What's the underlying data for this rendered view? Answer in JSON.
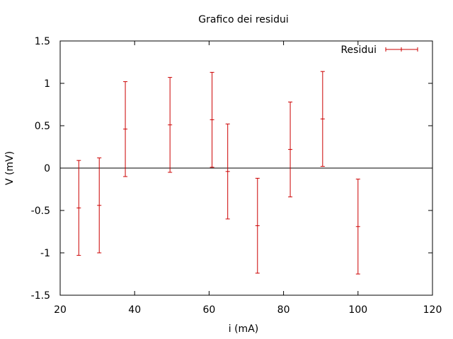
{
  "chart_data": {
    "type": "scatter",
    "title": "Grafico dei residui",
    "xlabel": "i (mA)",
    "ylabel": "V (mV)",
    "xlim": [
      20,
      120
    ],
    "ylim": [
      -1.5,
      1.5
    ],
    "x_ticks": [
      20,
      40,
      60,
      80,
      100,
      120
    ],
    "y_ticks": [
      1.5,
      1,
      0.5,
      0,
      -0.5,
      -1,
      -1.5
    ],
    "x_tick_labels": [
      "20",
      "40",
      "60",
      "80",
      "100",
      "120"
    ],
    "y_tick_labels": [
      "1.5",
      "1",
      "0.5",
      "0",
      "-0.5",
      "-1",
      "-1.5"
    ],
    "grid": false,
    "zero_line": true,
    "legend": {
      "placement": "top-right",
      "entries": [
        "Residui"
      ]
    },
    "series": [
      {
        "name": "Residui",
        "color": "#cc0000",
        "points": [
          {
            "x": 25,
            "y": -0.47,
            "err": 0.56
          },
          {
            "x": 30.5,
            "y": -0.44,
            "err": 0.56
          },
          {
            "x": 37.5,
            "y": 0.46,
            "err": 0.56
          },
          {
            "x": 49.5,
            "y": 0.51,
            "err": 0.56
          },
          {
            "x": 60.8,
            "y": 0.57,
            "err": 0.56
          },
          {
            "x": 65,
            "y": -0.04,
            "err": 0.56
          },
          {
            "x": 73,
            "y": -0.68,
            "err": 0.56
          },
          {
            "x": 81.8,
            "y": 0.22,
            "err": 0.56
          },
          {
            "x": 90.5,
            "y": 0.58,
            "err": 0.56
          },
          {
            "x": 100,
            "y": -0.69,
            "err": 0.56
          }
        ]
      }
    ]
  }
}
